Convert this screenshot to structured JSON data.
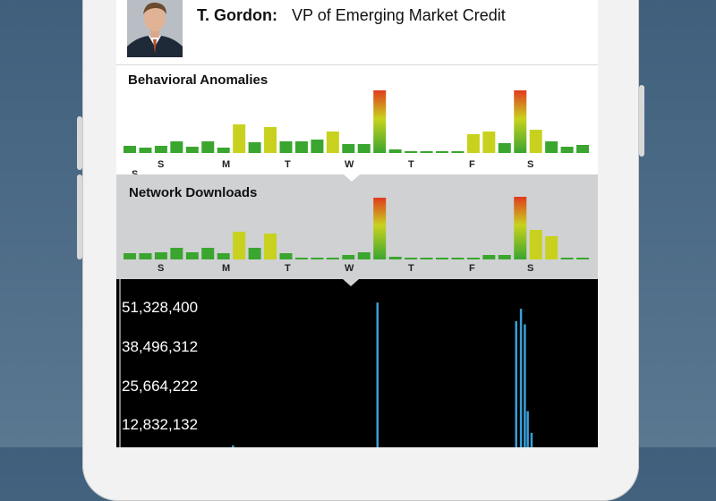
{
  "header": {
    "name": "T. Gordon:",
    "role": "VP of Emerging Market Credit"
  },
  "panels": {
    "anomalies_title": "Behavioral Anomalies",
    "network_title": "Network Downloads"
  },
  "big_chart": {
    "y_ticks": [
      "51,328,400",
      "38,496,312",
      "25,664,222",
      "12,832,132"
    ]
  },
  "colors": {
    "bar_green": "#3aa52f",
    "bar_yellow": "#c8d21e",
    "bar_red": "#e03a1e",
    "spike_blue": "#3a9fd8",
    "background": "#4a6a86"
  },
  "chart_data": [
    {
      "type": "bar",
      "title": "Behavioral Anomalies",
      "day_labels": [
        "S",
        "S",
        "M",
        "T",
        "W",
        "T",
        "F",
        "S"
      ],
      "values": [
        8,
        6,
        8,
        13,
        7,
        13,
        6,
        32,
        12,
        29,
        13,
        13,
        15,
        24,
        10,
        10,
        70,
        4,
        2,
        2,
        2,
        2,
        21,
        24,
        11,
        70,
        26,
        13,
        7,
        9
      ]
    },
    {
      "type": "bar",
      "title": "Network Downloads",
      "day_labels": [
        "S",
        "S",
        "M",
        "T",
        "W",
        "T",
        "F",
        "S"
      ],
      "values": [
        7,
        7,
        8,
        13,
        8,
        13,
        7,
        31,
        13,
        29,
        7,
        2,
        2,
        2,
        5,
        8,
        69,
        3,
        2,
        2,
        2,
        2,
        2,
        5,
        5,
        70,
        33,
        26,
        2,
        2
      ]
    },
    {
      "type": "bar",
      "y_ticks": [
        51328400,
        38496312,
        25664222,
        12832132
      ],
      "spikes": [
        {
          "pos": 0.11,
          "value": 1400000
        },
        {
          "pos": 0.24,
          "value": 7000000
        },
        {
          "pos": 0.31,
          "value": 4500000
        },
        {
          "pos": 0.54,
          "value": 53000000
        },
        {
          "pos": 0.828,
          "value": 47000000
        },
        {
          "pos": 0.838,
          "value": 51000000
        },
        {
          "pos": 0.846,
          "value": 46000000
        },
        {
          "pos": 0.852,
          "value": 18000000
        },
        {
          "pos": 0.86,
          "value": 11000000
        },
        {
          "pos": 0.888,
          "value": 5000000
        }
      ]
    }
  ]
}
